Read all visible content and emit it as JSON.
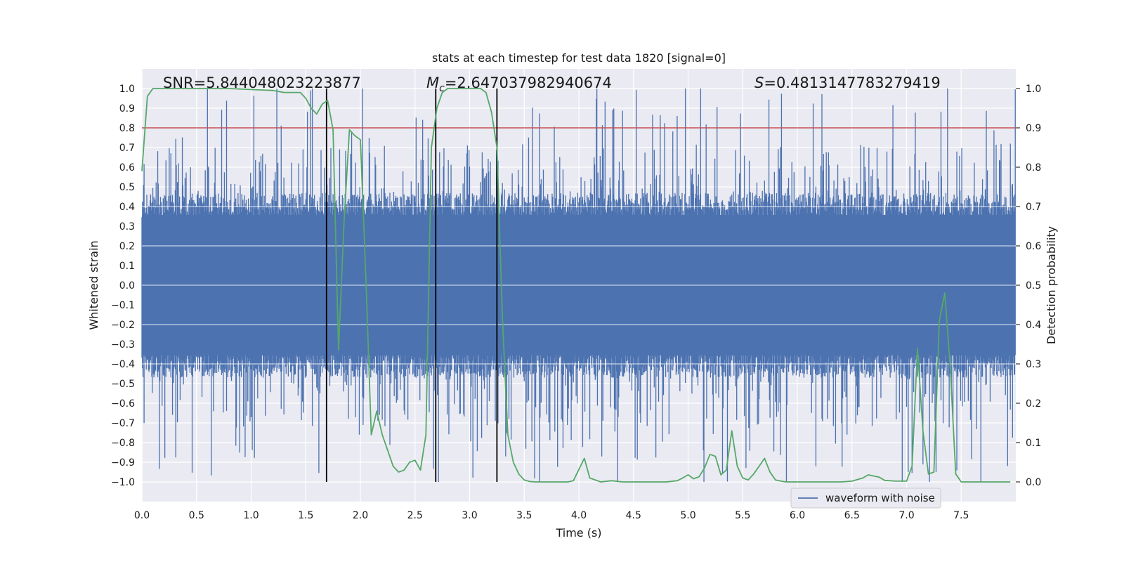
{
  "chart_data": {
    "type": "line",
    "title": "stats at each timestep for test data 1820 [signal=0]",
    "xlabel": "Time (s)",
    "ylabel_left": "Whitened strain",
    "ylabel_right": "Detection probability",
    "xlim": [
      0.0,
      8.0
    ],
    "ylim_left": [
      -1.1,
      1.1
    ],
    "ylim_right": [
      -0.05,
      1.05
    ],
    "x_ticks": [
      "0.0",
      "0.5",
      "1.0",
      "1.5",
      "2.0",
      "2.5",
      "3.0",
      "3.5",
      "4.0",
      "4.5",
      "5.0",
      "5.5",
      "6.0",
      "6.5",
      "7.0",
      "7.5"
    ],
    "x_tick_values": [
      0.0,
      0.5,
      1.0,
      1.5,
      2.0,
      2.5,
      3.0,
      3.5,
      4.0,
      4.5,
      5.0,
      5.5,
      6.0,
      6.5,
      7.0,
      7.5
    ],
    "y_left_ticks": [
      "1.0",
      "0.9",
      "0.8",
      "0.7",
      "0.6",
      "0.5",
      "0.4",
      "0.3",
      "0.2",
      "0.1",
      "0.0",
      "−0.1",
      "−0.2",
      "−0.3",
      "−0.4",
      "−0.5",
      "−0.6",
      "−0.7",
      "−0.8",
      "−0.9",
      "−1.0"
    ],
    "y_left_tick_values": [
      1.0,
      0.9,
      0.8,
      0.7,
      0.6,
      0.5,
      0.4,
      0.3,
      0.2,
      0.1,
      0.0,
      -0.1,
      -0.2,
      -0.3,
      -0.4,
      -0.5,
      -0.6,
      -0.7,
      -0.8,
      -0.9,
      -1.0
    ],
    "y_right_ticks": [
      "1.0",
      "0.9",
      "0.8",
      "0.7",
      "0.6",
      "0.5",
      "0.4",
      "0.3",
      "0.2",
      "0.1",
      "0.0"
    ],
    "y_right_tick_values": [
      1.0,
      0.9,
      0.8,
      0.7,
      0.6,
      0.5,
      0.4,
      0.3,
      0.2,
      0.1,
      0.0
    ],
    "annotations": {
      "snr": "SNR=5.844048023223877",
      "mc_symbol": "M",
      "mc_subscript": "c",
      "mc_value": "=2.647037982940674",
      "s_symbol": "S",
      "s_value": "=0.4813147783279419"
    },
    "threshold": {
      "value": 0.9,
      "axis": "right",
      "color": "#c44e52"
    },
    "vertical_lines": [
      1.69,
      2.69,
      3.25
    ],
    "legend": {
      "label": "waveform with noise",
      "location": "lower-right"
    },
    "series": [
      {
        "name": "waveform with noise",
        "axis": "left",
        "color": "#4c72b0",
        "kind": "noise",
        "typical_amplitude": 0.42,
        "peak_amplitude": 1.0
      },
      {
        "name": "detection probability",
        "axis": "right",
        "color": "#55a868",
        "x": [
          0.0,
          0.05,
          0.1,
          0.2,
          0.4,
          0.8,
          1.2,
          1.3,
          1.45,
          1.5,
          1.55,
          1.6,
          1.65,
          1.7,
          1.75,
          1.8,
          1.85,
          1.9,
          1.95,
          2.0,
          2.05,
          2.1,
          2.15,
          2.2,
          2.25,
          2.3,
          2.35,
          2.4,
          2.45,
          2.5,
          2.55,
          2.6,
          2.65,
          2.7,
          2.75,
          2.8,
          2.85,
          2.9,
          3.0,
          3.1,
          3.15,
          3.2,
          3.25,
          3.3,
          3.35,
          3.4,
          3.45,
          3.5,
          3.55,
          3.6,
          3.8,
          3.9,
          3.95,
          4.05,
          4.1,
          4.2,
          4.3,
          4.4,
          4.6,
          4.8,
          4.9,
          4.95,
          5.0,
          5.05,
          5.1,
          5.15,
          5.2,
          5.25,
          5.3,
          5.35,
          5.4,
          5.45,
          5.5,
          5.55,
          5.6,
          5.65,
          5.7,
          5.75,
          5.8,
          5.85,
          5.9,
          6.0,
          6.2,
          6.4,
          6.5,
          6.6,
          6.65,
          6.7,
          6.75,
          6.8,
          6.9,
          7.0,
          7.05,
          7.1,
          7.15,
          7.2,
          7.25,
          7.3,
          7.35,
          7.4,
          7.45,
          7.5,
          7.55,
          7.7,
          7.9,
          7.95
        ],
        "y": [
          0.79,
          0.98,
          1.0,
          1.0,
          1.0,
          1.0,
          0.995,
          0.99,
          0.99,
          0.975,
          0.95,
          0.935,
          0.96,
          0.97,
          0.895,
          0.335,
          0.66,
          0.895,
          0.88,
          0.87,
          0.52,
          0.12,
          0.18,
          0.12,
          0.08,
          0.04,
          0.025,
          0.03,
          0.05,
          0.055,
          0.03,
          0.12,
          0.85,
          0.95,
          0.99,
          1.0,
          1.0,
          1.0,
          1.0,
          1.0,
          0.99,
          0.94,
          0.85,
          0.42,
          0.12,
          0.05,
          0.02,
          0.005,
          0.001,
          0.0,
          0.0,
          0.0,
          0.003,
          0.06,
          0.01,
          0.0,
          0.003,
          0.0,
          0.0,
          0.0,
          0.003,
          0.01,
          0.018,
          0.008,
          0.013,
          0.035,
          0.07,
          0.065,
          0.018,
          0.03,
          0.13,
          0.04,
          0.01,
          0.005,
          0.02,
          0.04,
          0.06,
          0.025,
          0.005,
          0.002,
          0.0,
          0.0,
          0.0,
          0.0,
          0.002,
          0.01,
          0.018,
          0.015,
          0.012,
          0.004,
          0.002,
          0.002,
          0.04,
          0.34,
          0.13,
          0.02,
          0.025,
          0.41,
          0.48,
          0.29,
          0.02,
          0.0,
          0.0,
          0.0,
          0.0,
          0.0
        ]
      }
    ]
  }
}
